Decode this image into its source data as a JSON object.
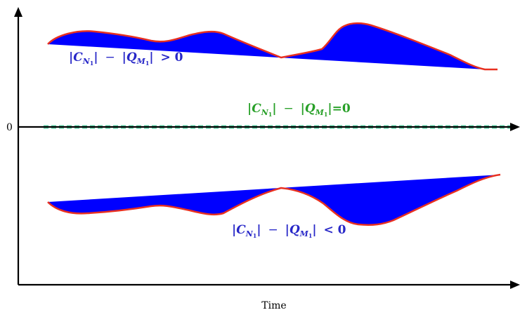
{
  "axes": {
    "x_label": "Time",
    "y_zero_label": "0"
  },
  "upper_region": {
    "expr": {
      "lhs": "C",
      "lhs_sub": "N",
      "lhs_subsub": "1",
      "op": "−",
      "rhs": "Q",
      "rhs_sub": "M",
      "rhs_subsub": "1",
      "rel": "> 0"
    },
    "text_color": "#2828c8",
    "fill_color": "#0000ff",
    "outline_color": "#e83020"
  },
  "middle_line": {
    "expr": {
      "lhs": "C",
      "lhs_sub": "N",
      "lhs_subsub": "1",
      "op": "−",
      "rhs": "Q",
      "rhs_sub": "M",
      "rhs_subsub": "1",
      "rel": "=0"
    },
    "text_color": "#28a028",
    "dash_color": "#5ed3a8"
  },
  "lower_region": {
    "expr": {
      "lhs": "C",
      "lhs_sub": "N",
      "lhs_subsub": "1",
      "op": "−",
      "rhs": "Q",
      "rhs_sub": "M",
      "rhs_subsub": "1",
      "rel": "< 0"
    },
    "text_color": "#2828c8",
    "fill_color": "#0000ff",
    "outline_color": "#e83020"
  }
}
